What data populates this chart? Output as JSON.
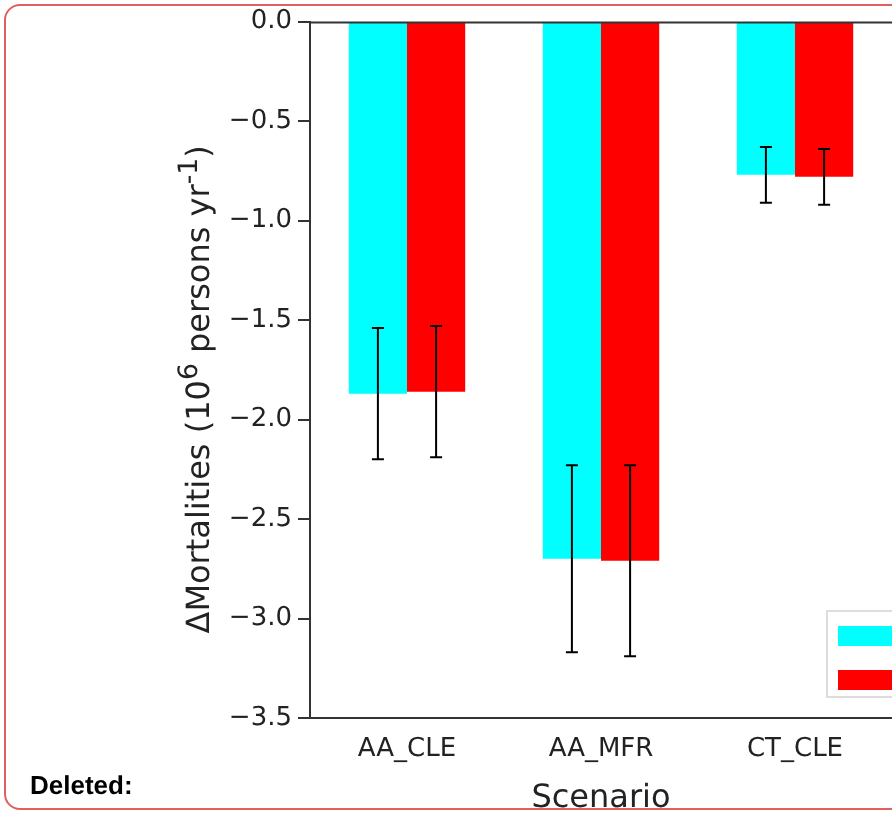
{
  "chart_data": {
    "type": "bar",
    "categories": [
      "AA_CLE",
      "AA_MFR",
      "CT_CLE"
    ],
    "series": [
      {
        "color": "#00ffff",
        "values": [
          -1.87,
          -2.7,
          -0.77
        ],
        "errors": [
          0.33,
          0.47,
          0.14
        ]
      },
      {
        "color": "#ff0000",
        "values": [
          -1.86,
          -2.71,
          -0.78
        ],
        "errors": [
          0.33,
          0.48,
          0.14
        ]
      }
    ],
    "xlabel": "Scenario",
    "ylabel": "ΔMortalities (10$^{6}$ persons yr$^{-1}$)",
    "ylim": [
      -3.5,
      0
    ],
    "yticks": [
      {
        "value": -3.5,
        "label": "−3.5"
      },
      {
        "value": -3,
        "label": "−3.0"
      },
      {
        "value": -2.5,
        "label": "−2.5"
      },
      {
        "value": -2,
        "label": "−2.0"
      },
      {
        "value": -1.5,
        "label": "−1.5"
      },
      {
        "value": -1,
        "label": "−1.0"
      },
      {
        "value": -0.5,
        "label": "−0.5"
      },
      {
        "value": 0,
        "label": "0.0"
      }
    ],
    "grid": false,
    "annotations": [
      "Deleted:"
    ]
  }
}
